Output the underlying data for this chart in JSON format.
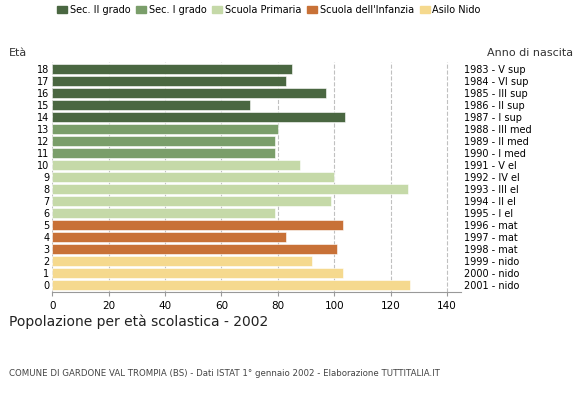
{
  "ages": [
    18,
    17,
    16,
    15,
    14,
    13,
    12,
    11,
    10,
    9,
    8,
    7,
    6,
    5,
    4,
    3,
    2,
    1,
    0
  ],
  "values": [
    85,
    83,
    97,
    70,
    104,
    80,
    79,
    79,
    88,
    100,
    126,
    99,
    79,
    103,
    83,
    101,
    92,
    103,
    127
  ],
  "right_labels": [
    "1983 - V sup",
    "1984 - VI sup",
    "1985 - III sup",
    "1986 - II sup",
    "1987 - I sup",
    "1988 - III med",
    "1989 - II med",
    "1990 - I med",
    "1991 - V el",
    "1992 - IV el",
    "1993 - III el",
    "1994 - II el",
    "1995 - I el",
    "1996 - mat",
    "1997 - mat",
    "1998 - mat",
    "1999 - nido",
    "2000 - nido",
    "2001 - nido"
  ],
  "colors": [
    "#4a6741",
    "#4a6741",
    "#4a6741",
    "#4a6741",
    "#4a6741",
    "#7a9e6a",
    "#7a9e6a",
    "#7a9e6a",
    "#c5d9a8",
    "#c5d9a8",
    "#c5d9a8",
    "#c5d9a8",
    "#c5d9a8",
    "#c87137",
    "#c87137",
    "#c87137",
    "#f5d98e",
    "#f5d98e",
    "#f5d98e"
  ],
  "legend_labels": [
    "Sec. II grado",
    "Sec. I grado",
    "Scuola Primaria",
    "Scuola dell'Infanzia",
    "Asilo Nido"
  ],
  "legend_colors": [
    "#4a6741",
    "#7a9e6a",
    "#c5d9a8",
    "#c87137",
    "#f5d98e"
  ],
  "title": "Popolazione per età scolastica - 2002",
  "subtitle": "COMUNE DI GARDONE VAL TROMPIA (BS) - Dati ISTAT 1° gennaio 2002 - Elaborazione TUTTITALIA.IT",
  "label_eta": "Età",
  "label_anno": "Anno di nascita",
  "xlim": [
    0,
    145
  ],
  "xticks": [
    0,
    20,
    40,
    60,
    80,
    100,
    120,
    140
  ],
  "bg_color": "#ffffff",
  "grid_color": "#c0c0c0",
  "bar_height": 0.82
}
